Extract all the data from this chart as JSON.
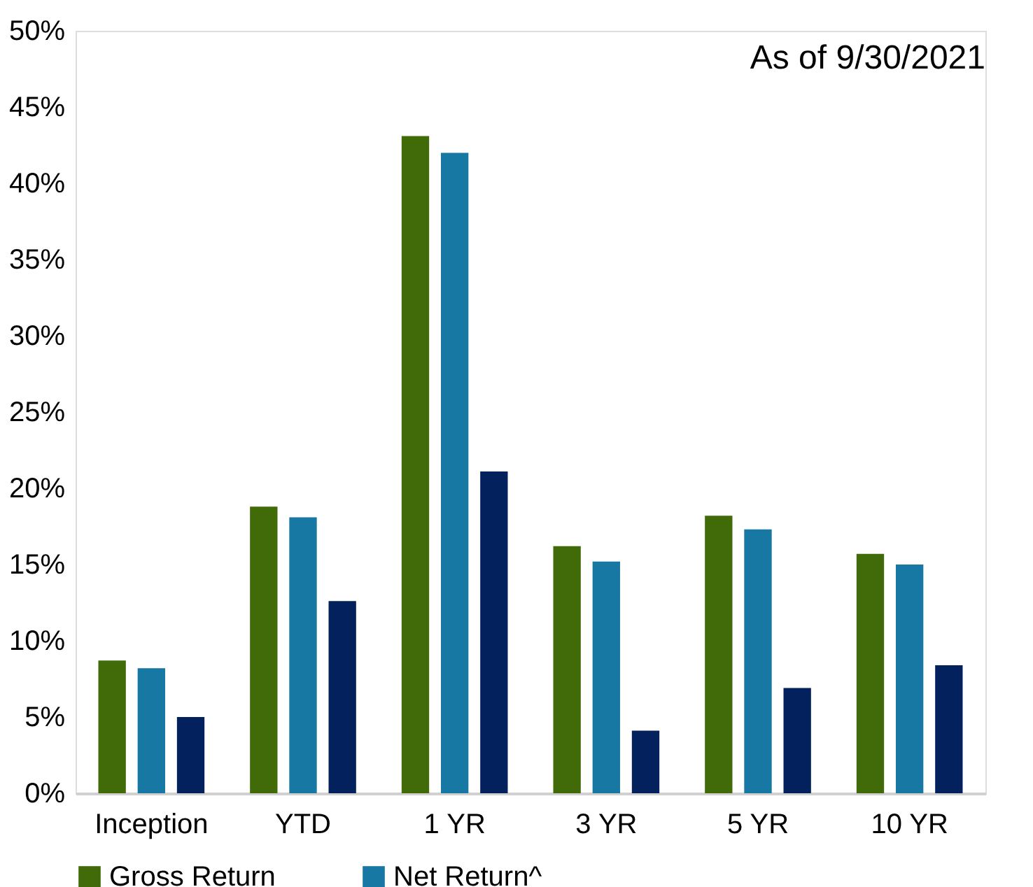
{
  "chart_data": {
    "type": "bar",
    "annotations": [
      "As of 9/30/2021"
    ],
    "categories": [
      "Inception",
      "YTD",
      "1 YR",
      "3 YR",
      "5 YR",
      "10 YR"
    ],
    "series": [
      {
        "name": "Gross Return",
        "color": "#416b08",
        "values": [
          8.7,
          18.8,
          43.1,
          16.2,
          18.2,
          15.7
        ]
      },
      {
        "name": "Net Return^",
        "color": "#1878a4",
        "values": [
          8.2,
          18.1,
          42.0,
          15.2,
          17.3,
          15.0
        ]
      },
      {
        "color": "#03215d",
        "values": [
          5.0,
          12.6,
          21.1,
          4.1,
          6.9,
          8.4
        ]
      }
    ],
    "ylim": [
      0,
      50
    ],
    "yticks": [
      {
        "value": 0,
        "label": "0%"
      },
      {
        "value": 5,
        "label": "5%"
      },
      {
        "value": 10,
        "label": "10%"
      },
      {
        "value": 15,
        "label": "15%"
      },
      {
        "value": 20,
        "label": "20%"
      },
      {
        "value": 25,
        "label": "25%"
      },
      {
        "value": 30,
        "label": "30%"
      },
      {
        "value": 35,
        "label": "35%"
      },
      {
        "value": 40,
        "label": "40%"
      },
      {
        "value": 45,
        "label": "45%"
      },
      {
        "value": 50,
        "label": "50%"
      }
    ],
    "grid": false,
    "legend": "bottom"
  }
}
